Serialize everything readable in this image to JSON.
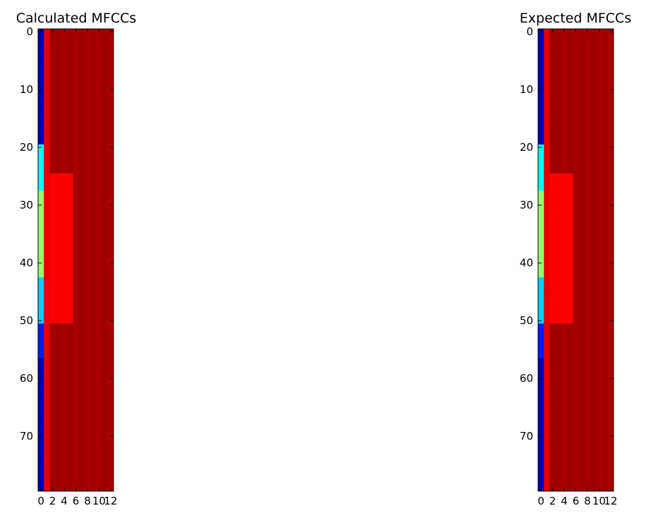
{
  "chart_data": [
    {
      "type": "heatmap",
      "title": "Calculated MFCCs",
      "xlabel": "",
      "ylabel": "",
      "colormap": "jet",
      "xlim": [
        -0.5,
        12.5
      ],
      "ylim": [
        79.5,
        -0.5
      ],
      "x_ticks": [
        0,
        2,
        4,
        6,
        8,
        10,
        12
      ],
      "y_ticks": [
        0,
        10,
        20,
        30,
        40,
        50,
        60,
        70
      ],
      "column_profile": {
        "columns": [
          0,
          1,
          2,
          3,
          4,
          5,
          6,
          7,
          8,
          9,
          10,
          11,
          12
        ],
        "typical_values": [
          0.05,
          0.9,
          0.97,
          0.97,
          0.96,
          0.97,
          0.96,
          0.97,
          0.96,
          0.97,
          0.96,
          0.97,
          0.96
        ]
      },
      "column0_segments": [
        {
          "rows": [
            0,
            19
          ],
          "value": 0.05
        },
        {
          "rows": [
            20,
            27
          ],
          "value": 0.38
        },
        {
          "rows": [
            28,
            42
          ],
          "value": 0.52
        },
        {
          "rows": [
            43,
            50
          ],
          "value": 0.33
        },
        {
          "rows": [
            51,
            56
          ],
          "value": 0.15
        },
        {
          "rows": [
            57,
            79
          ],
          "value": 0.05
        }
      ],
      "dark_region": {
        "columns": [
          2,
          5
        ],
        "rows": [
          25,
          50
        ],
        "value": 0.88
      }
    },
    {
      "type": "heatmap",
      "title": "Expected MFCCs",
      "xlabel": "",
      "ylabel": "",
      "colormap": "jet",
      "xlim": [
        -0.5,
        12.5
      ],
      "ylim": [
        79.5,
        -0.5
      ],
      "x_ticks": [
        0,
        2,
        4,
        6,
        8,
        10,
        12
      ],
      "y_ticks": [
        0,
        10,
        20,
        30,
        40,
        50,
        60,
        70
      ],
      "column_profile": {
        "columns": [
          0,
          1,
          2,
          3,
          4,
          5,
          6,
          7,
          8,
          9,
          10,
          11,
          12
        ],
        "typical_values": [
          0.05,
          0.9,
          0.97,
          0.97,
          0.96,
          0.97,
          0.96,
          0.97,
          0.96,
          0.97,
          0.96,
          0.97,
          0.96
        ]
      },
      "column0_segments": [
        {
          "rows": [
            0,
            19
          ],
          "value": 0.05
        },
        {
          "rows": [
            20,
            27
          ],
          "value": 0.38
        },
        {
          "rows": [
            28,
            42
          ],
          "value": 0.52
        },
        {
          "rows": [
            43,
            50
          ],
          "value": 0.33
        },
        {
          "rows": [
            51,
            56
          ],
          "value": 0.15
        },
        {
          "rows": [
            57,
            79
          ],
          "value": 0.05
        }
      ],
      "dark_region": {
        "columns": [
          2,
          5
        ],
        "rows": [
          25,
          50
        ],
        "value": 0.88
      }
    }
  ]
}
